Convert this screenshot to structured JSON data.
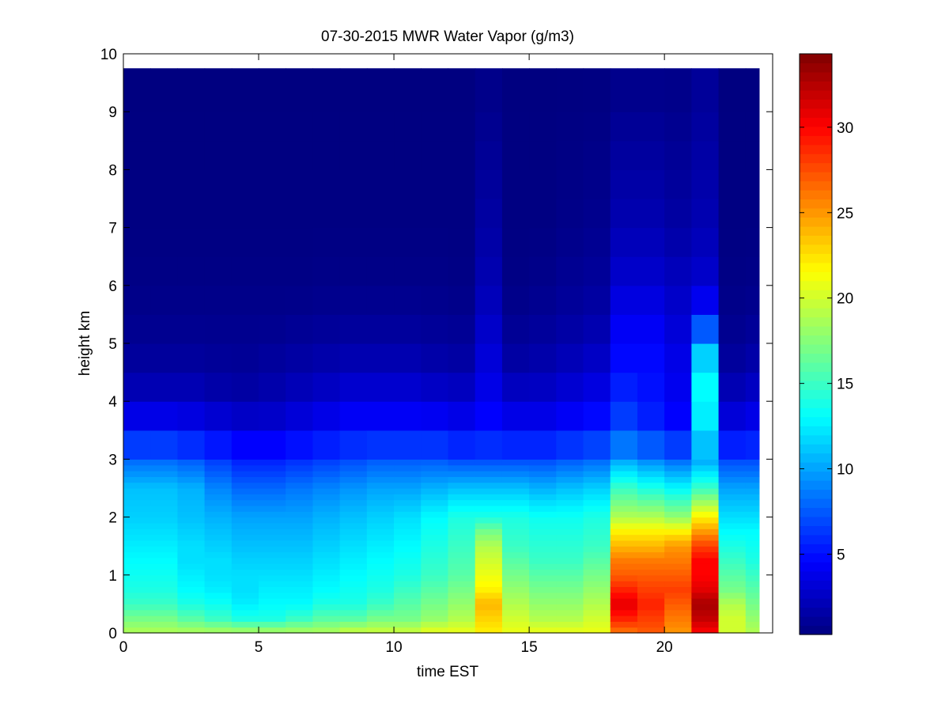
{
  "chart_data": {
    "type": "heatmap",
    "title": "07-30-2015 MWR Water Vapor (g/m3)",
    "xlabel": "time EST",
    "ylabel": "height km",
    "xlim": [
      0,
      24
    ],
    "ylim": [
      0,
      10
    ],
    "x_ticks": [
      0,
      5,
      10,
      15,
      20
    ],
    "y_ticks": [
      0,
      1,
      2,
      3,
      4,
      5,
      6,
      7,
      8,
      9,
      10
    ],
    "colorbar": {
      "range": [
        0.3,
        34.3
      ],
      "ticks": [
        5,
        10,
        15,
        20,
        25,
        30
      ],
      "colormap": "jet"
    },
    "x_edges": [
      0,
      1,
      2,
      3,
      4,
      5,
      6,
      7,
      8,
      9,
      10,
      11,
      12,
      13,
      14,
      15,
      16,
      17,
      18,
      19,
      20,
      21,
      22,
      23,
      23.5
    ],
    "heights_km": [
      0,
      0.1,
      0.2,
      0.3,
      0.4,
      0.5,
      0.6,
      0.7,
      0.8,
      0.9,
      1.0,
      1.1,
      1.2,
      1.3,
      1.4,
      1.5,
      1.6,
      1.7,
      1.8,
      1.9,
      2.0,
      2.1,
      2.2,
      2.3,
      2.4,
      2.5,
      2.6,
      2.7,
      2.8,
      2.9,
      3.0,
      3.5,
      4.0,
      4.5,
      5.0,
      5.5,
      6.0,
      6.5,
      7.0,
      7.5,
      8.0,
      8.5,
      9.0,
      9.75
    ],
    "profiles": [
      [
        19,
        17,
        15,
        14,
        13.5,
        13,
        12.5,
        12,
        11.5,
        11,
        8,
        5,
        2.5,
        1.5,
        1,
        0.7,
        0.5,
        0.4,
        0.3
      ],
      [
        19,
        17,
        15,
        14,
        13.5,
        13,
        12.5,
        12,
        11.5,
        11,
        8,
        5,
        2.5,
        1.5,
        1,
        0.7,
        0.5,
        0.4,
        0.3
      ],
      [
        19,
        16,
        14,
        13,
        12.5,
        12,
        12,
        11.5,
        11,
        10.5,
        7.5,
        4.5,
        2.5,
        1.5,
        1,
        0.7,
        0.5,
        0.4,
        0.3
      ],
      [
        19,
        15,
        13.5,
        12.5,
        12,
        12,
        11.5,
        11,
        10.5,
        9,
        6.5,
        4,
        2,
        1.3,
        0.9,
        0.7,
        0.5,
        0.4,
        0.3
      ],
      [
        19,
        14,
        12.5,
        12,
        12,
        11.5,
        11,
        10.5,
        10,
        8,
        5.5,
        3.5,
        1.8,
        1.2,
        0.9,
        0.7,
        0.5,
        0.4,
        0.3
      ],
      [
        19,
        14,
        13,
        12.5,
        12,
        11.5,
        11,
        10.5,
        10,
        8,
        5.5,
        3.5,
        2,
        1.5,
        1,
        0.7,
        0.5,
        0.4,
        0.3
      ],
      [
        19,
        15,
        13,
        12.5,
        12,
        11.5,
        11,
        10.5,
        10,
        8.5,
        6,
        4,
        2.5,
        1.8,
        1.2,
        0.8,
        0.5,
        0.4,
        0.3
      ],
      [
        19,
        16,
        14,
        13,
        12.5,
        12,
        11.5,
        11,
        10.5,
        9,
        6.5,
        4.5,
        3,
        2,
        1.4,
        0.9,
        0.6,
        0.4,
        0.3
      ],
      [
        20,
        16,
        14,
        13.5,
        13,
        12.5,
        12,
        11.5,
        11,
        9.5,
        7,
        5,
        3.5,
        2.3,
        1.5,
        1,
        0.6,
        0.4,
        0.3
      ],
      [
        20,
        17,
        15,
        14,
        13.5,
        13,
        12.5,
        12,
        11.5,
        10,
        7.5,
        5,
        3.5,
        2.3,
        1.5,
        1,
        0.6,
        0.4,
        0.3
      ],
      [
        20,
        17,
        16,
        15,
        14,
        13.5,
        13,
        12.5,
        12,
        10,
        7.5,
        5,
        3.5,
        2.3,
        1.5,
        1,
        0.6,
        0.4,
        0.3
      ],
      [
        21,
        18,
        17,
        16,
        15,
        14.5,
        14,
        13.5,
        13,
        10.5,
        7.5,
        5,
        3.2,
        2,
        1.3,
        0.9,
        0.6,
        0.4,
        0.3
      ],
      [
        21,
        19,
        18,
        17,
        16,
        15.5,
        15,
        14.5,
        14,
        11,
        7,
        4.5,
        3,
        1.8,
        1.2,
        0.8,
        0.5,
        0.4,
        0.3
      ],
      [
        22,
        23,
        24,
        22,
        21,
        20,
        19,
        17,
        14,
        11,
        7,
        5,
        4,
        3.5,
        3,
        2.5,
        2,
        1.5,
        0.5
      ],
      [
        21,
        20,
        19,
        18,
        17,
        16,
        15,
        14.5,
        14,
        11,
        7,
        4.5,
        3,
        1.8,
        1.2,
        0.8,
        0.5,
        0.4,
        0.3
      ],
      [
        21,
        19,
        18,
        17,
        16,
        15,
        14.5,
        14,
        13.5,
        10.5,
        7,
        4.5,
        3,
        2,
        1.4,
        1,
        0.7,
        0.4,
        0.3
      ],
      [
        21,
        19,
        18,
        17,
        16,
        15,
        14.5,
        14,
        13.5,
        11,
        7.5,
        5,
        3.5,
        2.5,
        1.8,
        1.3,
        1,
        0.6,
        0.3
      ],
      [
        21,
        20,
        19,
        18,
        17,
        16,
        15,
        14.5,
        14,
        11.5,
        8,
        5.5,
        4,
        3,
        2.2,
        1.6,
        1.2,
        0.8,
        0.3
      ],
      [
        26,
        29,
        31,
        29,
        27,
        26,
        24,
        22,
        19,
        15,
        10,
        7,
        6,
        5,
        4.5,
        4,
        3,
        2,
        0.5
      ],
      [
        27,
        28,
        29,
        28,
        27,
        26,
        24,
        22,
        19,
        14,
        9,
        6,
        5,
        5,
        4.5,
        4,
        3,
        2,
        0.5
      ],
      [
        25,
        26,
        27,
        28,
        27,
        26,
        25,
        22,
        18,
        13,
        8,
        5,
        4,
        4,
        3.5,
        3,
        2.5,
        1.5,
        0.5
      ],
      [
        30,
        32,
        33,
        31,
        30,
        30,
        28,
        25,
        22,
        15,
        10,
        12,
        13,
        13,
        10,
        5,
        3,
        2,
        1
      ],
      [
        20,
        20,
        19,
        17,
        16,
        15,
        14,
        13,
        12,
        10,
        7,
        4,
        2.5,
        1.5,
        1,
        0.7,
        0.5,
        0.4,
        0.3
      ],
      [
        19,
        18,
        17,
        16,
        15,
        14,
        13.5,
        13,
        12,
        10,
        7,
        4.5,
        3,
        2,
        1.3,
        0.9,
        0.6,
        0.4,
        0.3
      ]
    ],
    "profile_heights_km": [
      0,
      0.25,
      0.5,
      0.75,
      1.0,
      1.25,
      1.5,
      1.75,
      2.0,
      2.5,
      3.0,
      3.5,
      4.0,
      4.5,
      5.0,
      5.5,
      6.0,
      7.0,
      9.75
    ]
  }
}
